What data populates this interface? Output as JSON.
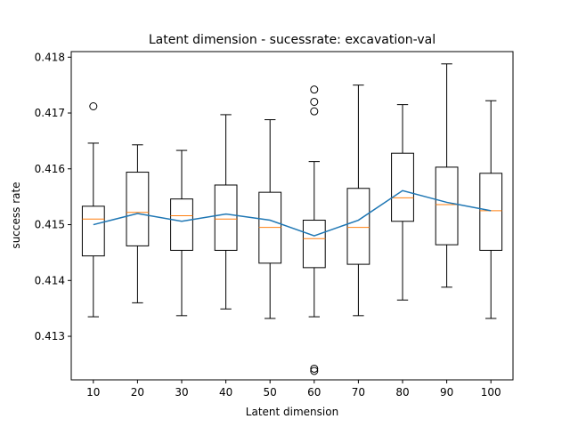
{
  "chart_data": {
    "type": "box",
    "title": "Latent dimension - sucessrate: excavation-val",
    "xlabel": "Latent dimension",
    "ylabel": "success rate",
    "categories": [
      "10",
      "20",
      "30",
      "40",
      "50",
      "60",
      "70",
      "80",
      "90",
      "100"
    ],
    "ylim": [
      0.41222,
      0.4181
    ],
    "yticks": [
      0.413,
      0.414,
      0.415,
      0.416,
      0.417,
      0.418
    ],
    "ytick_labels": [
      "0.413",
      "0.414",
      "0.415",
      "0.416",
      "0.417",
      "0.418"
    ],
    "boxes": [
      {
        "category": "10",
        "whisker_low": 0.41335,
        "q1": 0.41444,
        "median": 0.4151,
        "q3": 0.41533,
        "whisker_high": 0.41646,
        "outliers": [
          0.41712
        ]
      },
      {
        "category": "20",
        "whisker_low": 0.4136,
        "q1": 0.41462,
        "median": 0.41522,
        "q3": 0.41594,
        "whisker_high": 0.41643,
        "outliers": []
      },
      {
        "category": "30",
        "whisker_low": 0.41337,
        "q1": 0.41454,
        "median": 0.41516,
        "q3": 0.41546,
        "whisker_high": 0.41633,
        "outliers": []
      },
      {
        "category": "40",
        "whisker_low": 0.41349,
        "q1": 0.41454,
        "median": 0.4151,
        "q3": 0.41571,
        "whisker_high": 0.41697,
        "outliers": []
      },
      {
        "category": "50",
        "whisker_low": 0.41332,
        "q1": 0.41431,
        "median": 0.41495,
        "q3": 0.41558,
        "whisker_high": 0.41688,
        "outliers": []
      },
      {
        "category": "60",
        "whisker_low": 0.41335,
        "q1": 0.41423,
        "median": 0.41475,
        "q3": 0.41508,
        "whisker_high": 0.41613,
        "outliers": [
          0.41742,
          0.4172,
          0.41703,
          0.41242,
          0.41238
        ]
      },
      {
        "category": "70",
        "whisker_low": 0.41337,
        "q1": 0.41429,
        "median": 0.41495,
        "q3": 0.41565,
        "whisker_high": 0.4175,
        "outliers": []
      },
      {
        "category": "80",
        "whisker_low": 0.41365,
        "q1": 0.41506,
        "median": 0.41548,
        "q3": 0.41628,
        "whisker_high": 0.41715,
        "outliers": []
      },
      {
        "category": "90",
        "whisker_low": 0.41388,
        "q1": 0.41464,
        "median": 0.41536,
        "q3": 0.41603,
        "whisker_high": 0.41788,
        "outliers": []
      },
      {
        "category": "100",
        "whisker_low": 0.41332,
        "q1": 0.41454,
        "median": 0.41525,
        "q3": 0.41592,
        "whisker_high": 0.41722,
        "outliers": []
      }
    ],
    "mean_line": {
      "values": [
        0.415,
        0.4152,
        0.41506,
        0.41519,
        0.41508,
        0.4148,
        0.41508,
        0.41561,
        0.4154,
        0.41525
      ]
    },
    "colors": {
      "box": "#000000",
      "median": "#ff7f0e",
      "mean_line": "#1f77b4",
      "outlier": "#000000"
    },
    "grid": false
  }
}
